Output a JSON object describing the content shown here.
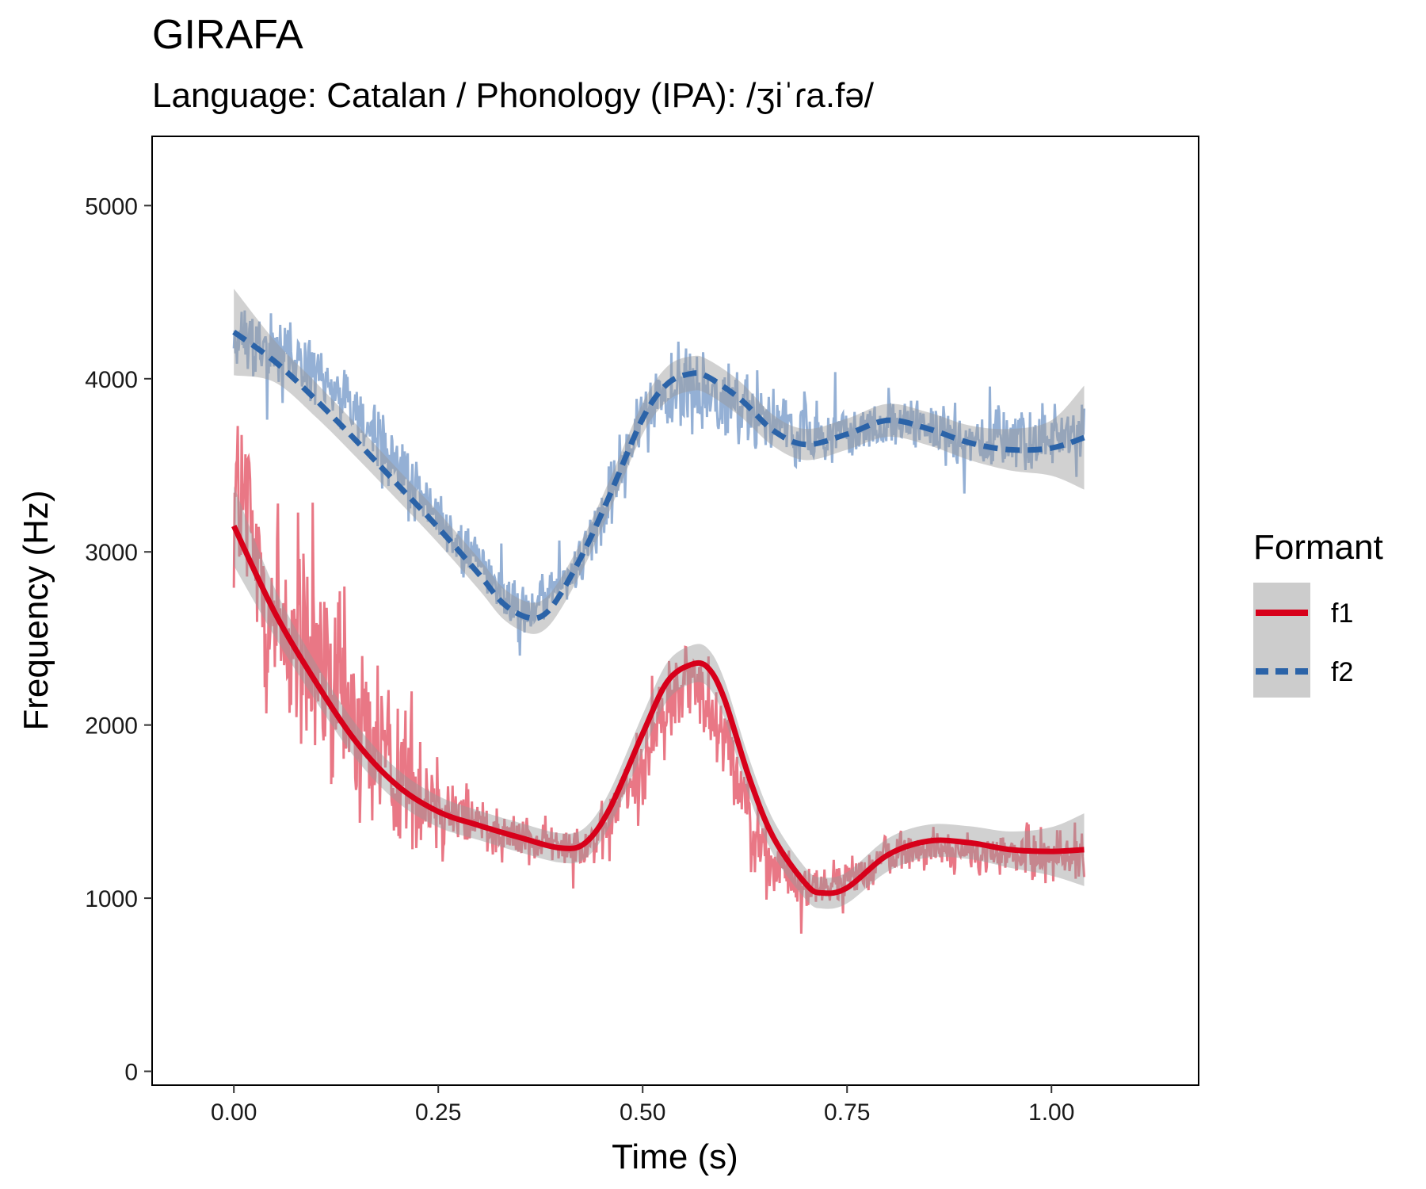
{
  "header": {
    "title": "GIRAFA",
    "subtitle": "Language: Catalan / Phonology (IPA): /ʒiˈɾa.fə/"
  },
  "chart_data": {
    "type": "line",
    "xlabel": "Time (s)",
    "ylabel": "Frequency (Hz)",
    "xlim": [
      -0.1,
      1.18
    ],
    "ylim": [
      -80,
      5400
    ],
    "x_ticks": [
      "0.00",
      "0.25",
      "0.50",
      "0.75",
      "1.00"
    ],
    "x_tick_values": [
      0,
      0.25,
      0.5,
      0.75,
      1.0
    ],
    "y_ticks": [
      "0",
      "1000",
      "2000",
      "3000",
      "4000",
      "5000"
    ],
    "y_tick_values": [
      0,
      1000,
      2000,
      3000,
      4000,
      5000
    ],
    "grid": false,
    "legend": {
      "title": "Formant",
      "position": "right",
      "entries": [
        "f1",
        "f2"
      ]
    },
    "series": [
      {
        "name": "f1",
        "color": "#d7001a",
        "raw_color": "#e8707e",
        "line_style": "solid",
        "raw_envelope": {
          "x": [
            0.0,
            0.05,
            0.1,
            0.15,
            0.2,
            0.25,
            0.3,
            0.35,
            0.4,
            0.45,
            0.5,
            0.55,
            0.6,
            0.65,
            0.7,
            0.75,
            0.8,
            0.85,
            0.9,
            0.95,
            1.0,
            1.04
          ],
          "center": [
            3400,
            2600,
            2300,
            2000,
            1750,
            1550,
            1450,
            1350,
            1300,
            1350,
            1800,
            2300,
            2000,
            1200,
            1050,
            1100,
            1250,
            1300,
            1250,
            1250,
            1250,
            1250
          ],
          "spread": [
            1800,
            2000,
            1700,
            1600,
            1300,
            800,
            500,
            350,
            300,
            450,
            600,
            700,
            700,
            500,
            350,
            300,
            350,
            300,
            300,
            350,
            400,
            450
          ]
        },
        "smooth": {
          "x": [
            0.0,
            0.05,
            0.1,
            0.15,
            0.2,
            0.25,
            0.3,
            0.35,
            0.4,
            0.43,
            0.46,
            0.5,
            0.53,
            0.56,
            0.58,
            0.6,
            0.63,
            0.66,
            0.7,
            0.72,
            0.75,
            0.8,
            0.85,
            0.9,
            0.95,
            1.0,
            1.04
          ],
          "y": [
            3150,
            2650,
            2250,
            1900,
            1650,
            1500,
            1420,
            1350,
            1290,
            1320,
            1520,
            1950,
            2250,
            2350,
            2330,
            2150,
            1700,
            1350,
            1080,
            1030,
            1060,
            1250,
            1330,
            1320,
            1280,
            1270,
            1280
          ],
          "band": [
            230,
            140,
            110,
            100,
            95,
            90,
            85,
            85,
            85,
            90,
            100,
            110,
            110,
            110,
            110,
            110,
            110,
            100,
            90,
            90,
            90,
            95,
            95,
            95,
            105,
            140,
            210
          ]
        }
      },
      {
        "name": "f2",
        "color": "#2b63a8",
        "raw_color": "#8eacd3",
        "line_style": "dashed",
        "raw_envelope": {
          "x": [
            0.0,
            0.05,
            0.1,
            0.15,
            0.2,
            0.25,
            0.3,
            0.35,
            0.4,
            0.45,
            0.5,
            0.55,
            0.6,
            0.65,
            0.7,
            0.75,
            0.8,
            0.85,
            0.9,
            0.95,
            1.0,
            1.04
          ],
          "center": [
            4200,
            4200,
            4000,
            3800,
            3500,
            3200,
            2950,
            2650,
            2750,
            3200,
            3800,
            3950,
            3850,
            3750,
            3650,
            3700,
            3750,
            3700,
            3650,
            3650,
            3650,
            3650
          ],
          "spread": [
            500,
            500,
            550,
            500,
            550,
            400,
            450,
            500,
            450,
            500,
            550,
            700,
            600,
            450,
            450,
            400,
            450,
            400,
            450,
            450,
            550,
            500
          ]
        },
        "smooth": {
          "x": [
            0.0,
            0.05,
            0.1,
            0.15,
            0.2,
            0.25,
            0.3,
            0.33,
            0.36,
            0.38,
            0.4,
            0.43,
            0.46,
            0.5,
            0.53,
            0.56,
            0.58,
            0.62,
            0.66,
            0.7,
            0.75,
            0.8,
            0.85,
            0.9,
            0.95,
            1.0,
            1.04
          ],
          "y": [
            4270,
            4100,
            3880,
            3640,
            3390,
            3140,
            2870,
            2700,
            2620,
            2640,
            2760,
            3020,
            3330,
            3770,
            3970,
            4030,
            4010,
            3880,
            3700,
            3620,
            3680,
            3760,
            3710,
            3630,
            3590,
            3600,
            3660
          ],
          "band": [
            250,
            120,
            100,
            95,
            90,
            90,
            90,
            90,
            90,
            90,
            90,
            90,
            90,
            90,
            100,
            100,
            100,
            100,
            90,
            90,
            90,
            95,
            95,
            100,
            120,
            160,
            300
          ]
        }
      }
    ]
  }
}
